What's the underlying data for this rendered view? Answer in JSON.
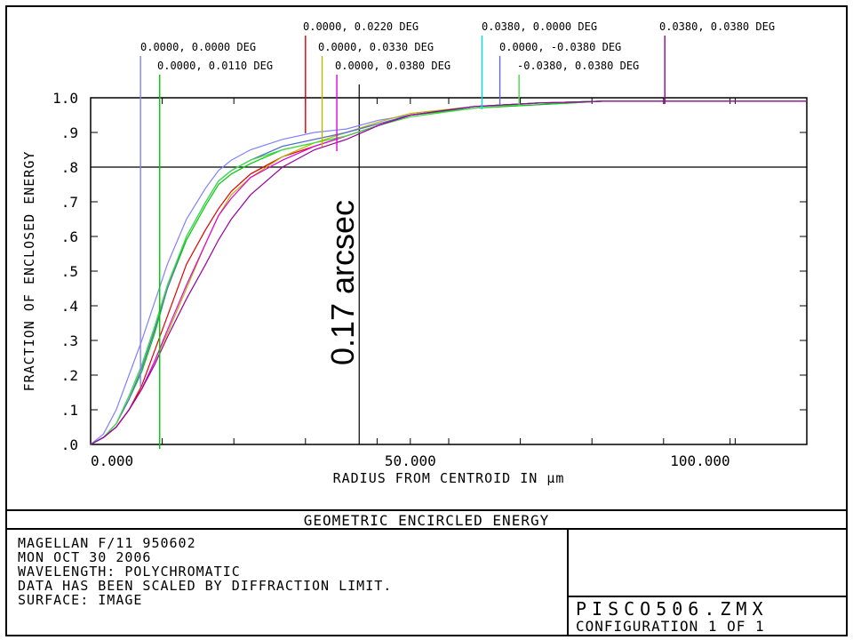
{
  "chart_data": {
    "type": "line",
    "xlabel": "RADIUS FROM CENTROID IN µm",
    "ylabel": "FRACTION OF ENCLOSED ENERGY",
    "xlim": [
      0,
      112
    ],
    "ylim": [
      0,
      1.0
    ],
    "x_tick_labels": [
      {
        "value": 0,
        "label": "0.000"
      },
      {
        "value": 50,
        "label": "50.000"
      },
      {
        "value": 100,
        "label": "100.000"
      }
    ],
    "x_minor_ticks": [
      11.2,
      22.4,
      33.6,
      44.8,
      56,
      67.2,
      78.4,
      89.6,
      100.8
    ],
    "y_tick_labels": [
      {
        "value": 0.0,
        "label": ".0"
      },
      {
        "value": 0.1,
        "label": ".1"
      },
      {
        "value": 0.2,
        "label": ".2"
      },
      {
        "value": 0.3,
        "label": ".3"
      },
      {
        "value": 0.4,
        "label": ".4"
      },
      {
        "value": 0.5,
        "label": ".5"
      },
      {
        "value": 0.6,
        "label": ".6"
      },
      {
        "value": 0.7,
        "label": ".7"
      },
      {
        "value": 0.8,
        "label": ".8"
      },
      {
        "value": 0.9,
        "label": ".9"
      },
      {
        "value": 1.0,
        "label": "1.0"
      }
    ],
    "reference_lines": {
      "horizontal_y": 0.8,
      "vertical_x": 42
    },
    "annotation": "0.17 arcsec",
    "series": [
      {
        "name": "0.0000, 0.0000 DEG",
        "color": "#8080ff",
        "marker_x": 7.8,
        "x": [
          0,
          2,
          4,
          6,
          8,
          10,
          12,
          15,
          18,
          20,
          22,
          25,
          30,
          35,
          40,
          45,
          50,
          60,
          70,
          80,
          90,
          100,
          112
        ],
        "y": [
          0,
          0.03,
          0.1,
          0.2,
          0.3,
          0.41,
          0.52,
          0.65,
          0.74,
          0.79,
          0.82,
          0.85,
          0.88,
          0.9,
          0.91,
          0.935,
          0.95,
          0.97,
          0.98,
          0.99,
          0.99,
          0.99,
          0.99
        ]
      },
      {
        "name": "0.0000, 0.0110 DEG",
        "color": "#00cc00",
        "marker_x": 10.8,
        "x": [
          0,
          2,
          4,
          6,
          8,
          10,
          12,
          15,
          18,
          20,
          22,
          25,
          30,
          35,
          40,
          45,
          50,
          55,
          60,
          70,
          80,
          90,
          100,
          112
        ],
        "y": [
          0,
          0.02,
          0.06,
          0.13,
          0.21,
          0.32,
          0.45,
          0.59,
          0.69,
          0.75,
          0.78,
          0.81,
          0.85,
          0.87,
          0.89,
          0.92,
          0.95,
          0.96,
          0.97,
          0.98,
          0.99,
          0.99,
          0.99,
          0.99
        ]
      },
      {
        "name": "0.0000, 0.0220 DEG",
        "color": "#e00000",
        "marker_x": 33.6,
        "x": [
          0,
          2,
          4,
          6,
          8,
          10,
          12,
          15,
          18,
          20,
          22,
          25,
          30,
          35,
          40,
          45,
          50,
          60,
          70,
          80,
          90,
          100,
          112
        ],
        "y": [
          0,
          0.02,
          0.05,
          0.1,
          0.17,
          0.27,
          0.37,
          0.52,
          0.62,
          0.68,
          0.73,
          0.78,
          0.83,
          0.86,
          0.89,
          0.92,
          0.95,
          0.975,
          0.985,
          0.99,
          0.99,
          0.99,
          0.99
        ]
      },
      {
        "name": "0.0000, 0.0330 DEG",
        "color": "#b8b800",
        "marker_x": 36.2,
        "x": [
          0,
          2,
          4,
          6,
          8,
          10,
          12,
          15,
          18,
          20,
          22,
          25,
          30,
          35,
          40,
          45,
          50,
          60,
          70,
          80,
          90,
          100,
          112
        ],
        "y": [
          0,
          0.02,
          0.05,
          0.1,
          0.16,
          0.24,
          0.32,
          0.45,
          0.58,
          0.66,
          0.72,
          0.77,
          0.83,
          0.87,
          0.9,
          0.93,
          0.955,
          0.975,
          0.985,
          0.99,
          0.99,
          0.99,
          0.99
        ]
      },
      {
        "name": "0.0000, 0.0380 DEG",
        "color": "#e000e0",
        "marker_x": 38.5,
        "x": [
          0,
          2,
          4,
          6,
          8,
          10,
          12,
          15,
          18,
          20,
          22,
          25,
          30,
          35,
          40,
          45,
          50,
          60,
          70,
          80,
          90,
          100,
          112
        ],
        "y": [
          0,
          0.02,
          0.05,
          0.1,
          0.16,
          0.24,
          0.33,
          0.46,
          0.58,
          0.66,
          0.71,
          0.77,
          0.82,
          0.86,
          0.89,
          0.92,
          0.95,
          0.975,
          0.985,
          0.99,
          0.99,
          0.99,
          0.99
        ]
      },
      {
        "name": "0.0380, 0.0000 DEG",
        "color": "#00dddd",
        "marker_x": 61.2,
        "x": [
          0,
          2,
          4,
          6,
          8,
          10,
          12,
          15,
          18,
          20,
          22,
          25,
          30,
          35,
          40,
          45,
          50,
          60,
          70,
          80,
          90,
          100,
          112
        ],
        "y": [
          0,
          0.02,
          0.06,
          0.14,
          0.23,
          0.34,
          0.46,
          0.6,
          0.7,
          0.76,
          0.79,
          0.82,
          0.86,
          0.88,
          0.9,
          0.925,
          0.95,
          0.975,
          0.985,
          0.99,
          0.99,
          0.99,
          0.99
        ]
      },
      {
        "name": "0.0000, -0.0380 DEG",
        "color": "#6666cc",
        "marker_x": 64.0,
        "x": [
          0,
          2,
          4,
          6,
          8,
          10,
          12,
          15,
          18,
          20,
          22,
          25,
          30,
          35,
          40,
          45,
          50,
          60,
          70,
          80,
          90,
          100,
          112
        ],
        "y": [
          0,
          0.02,
          0.06,
          0.13,
          0.22,
          0.33,
          0.45,
          0.6,
          0.7,
          0.76,
          0.79,
          0.82,
          0.86,
          0.88,
          0.9,
          0.925,
          0.95,
          0.975,
          0.985,
          0.99,
          0.99,
          0.99,
          0.99
        ]
      },
      {
        "name": "-0.0380, 0.0380 DEG",
        "color": "#44dd44",
        "marker_x": 67.0,
        "x": [
          0,
          2,
          4,
          6,
          8,
          10,
          12,
          15,
          18,
          20,
          22,
          25,
          30,
          35,
          40,
          45,
          50,
          60,
          70,
          80,
          90,
          100,
          112
        ],
        "y": [
          0,
          0.02,
          0.06,
          0.14,
          0.23,
          0.34,
          0.46,
          0.6,
          0.7,
          0.76,
          0.79,
          0.82,
          0.85,
          0.87,
          0.89,
          0.92,
          0.945,
          0.97,
          0.985,
          0.99,
          0.99,
          0.99,
          0.99
        ]
      },
      {
        "name": "0.0380, 0.0380 DEG",
        "color": "#990099",
        "marker_x": 89.8,
        "x": [
          0,
          2,
          4,
          6,
          8,
          10,
          12,
          15,
          18,
          20,
          22,
          25,
          30,
          35,
          40,
          45,
          50,
          60,
          70,
          80,
          90,
          100,
          112
        ],
        "y": [
          0,
          0.02,
          0.05,
          0.1,
          0.16,
          0.23,
          0.31,
          0.42,
          0.52,
          0.59,
          0.65,
          0.72,
          0.8,
          0.85,
          0.88,
          0.92,
          0.95,
          0.975,
          0.985,
          0.99,
          0.99,
          0.99,
          0.99
        ]
      }
    ]
  },
  "footer": {
    "title": "GEOMETRIC ENCIRCLED ENERGY",
    "lines": [
      "MAGELLAN F/11 950602",
      "MON OCT 30 2006",
      "WAVELENGTH: POLYCHROMATIC",
      "DATA HAS BEEN SCALED BY DIFFRACTION LIMIT.",
      "SURFACE: IMAGE"
    ],
    "filename": "PISCO506.ZMX",
    "configuration": "CONFIGURATION 1 OF 1"
  }
}
